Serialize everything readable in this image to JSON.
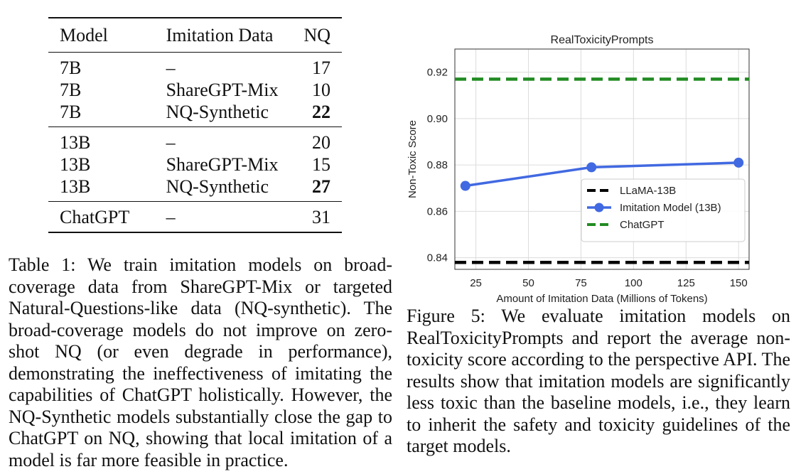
{
  "table": {
    "headers": [
      "Model",
      "Imitation Data",
      "NQ"
    ],
    "groups": [
      [
        {
          "model": "7B",
          "data": "–",
          "nq": "17",
          "bold": false
        },
        {
          "model": "7B",
          "data": "ShareGPT-Mix",
          "nq": "10",
          "bold": false
        },
        {
          "model": "7B",
          "data": "NQ-Synthetic",
          "nq": "22",
          "bold": true
        }
      ],
      [
        {
          "model": "13B",
          "data": "–",
          "nq": "20",
          "bold": false
        },
        {
          "model": "13B",
          "data": "ShareGPT-Mix",
          "nq": "15",
          "bold": false
        },
        {
          "model": "13B",
          "data": "NQ-Synthetic",
          "nq": "27",
          "bold": true
        }
      ],
      [
        {
          "model": "ChatGPT",
          "data": "–",
          "nq": "31",
          "bold": false
        }
      ]
    ]
  },
  "caption1": "Table 1: We train imitation models on broad-coverage data from ShareGPT-Mix or targeted Natural-Questions-like data (NQ-synthetic). The broad-coverage models do not improve on zero-shot NQ (or even degrade in performance), demonstrating the ineffectiveness of imitating the capabilities of ChatGPT holistically. However, the NQ-Synthetic models substantially close the gap to ChatGPT on NQ, showing that local imitation of a model is far more feasible in practice.",
  "caption2": "Figure 5: We evaluate imitation models on RealToxicityPrompts and report the average non-toxicity score according to the perspective API. The results show that imitation models are significantly less toxic than the baseline models, i.e., they learn to inherit the safety and toxicity guidelines of the target models.",
  "chart_data": {
    "type": "line",
    "title": "RealToxicityPrompts",
    "xlabel": "Amount of Imitation Data (Millions of Tokens)",
    "ylabel": "Non-Toxic Score",
    "xlim": [
      15,
      155
    ],
    "ylim": [
      0.835,
      0.93
    ],
    "xticks": [
      25,
      50,
      75,
      100,
      125,
      150
    ],
    "yticks": [
      0.84,
      0.86,
      0.88,
      0.9,
      0.92
    ],
    "ytick_labels": [
      "0.84",
      "0.86",
      "0.88",
      "0.90",
      "0.92"
    ],
    "grid": true,
    "legend_position": "lower-right",
    "series": [
      {
        "name": "LLaMA-13B",
        "style": "dashed",
        "color": "#000000",
        "hline": 0.838
      },
      {
        "name": "Imitation Model (13B)",
        "style": "solid-marker",
        "color": "#4169e1",
        "x": [
          20,
          80,
          150
        ],
        "y": [
          0.871,
          0.879,
          0.881
        ]
      },
      {
        "name": "ChatGPT",
        "style": "dashed",
        "color": "#228b22",
        "hline": 0.917
      }
    ]
  }
}
